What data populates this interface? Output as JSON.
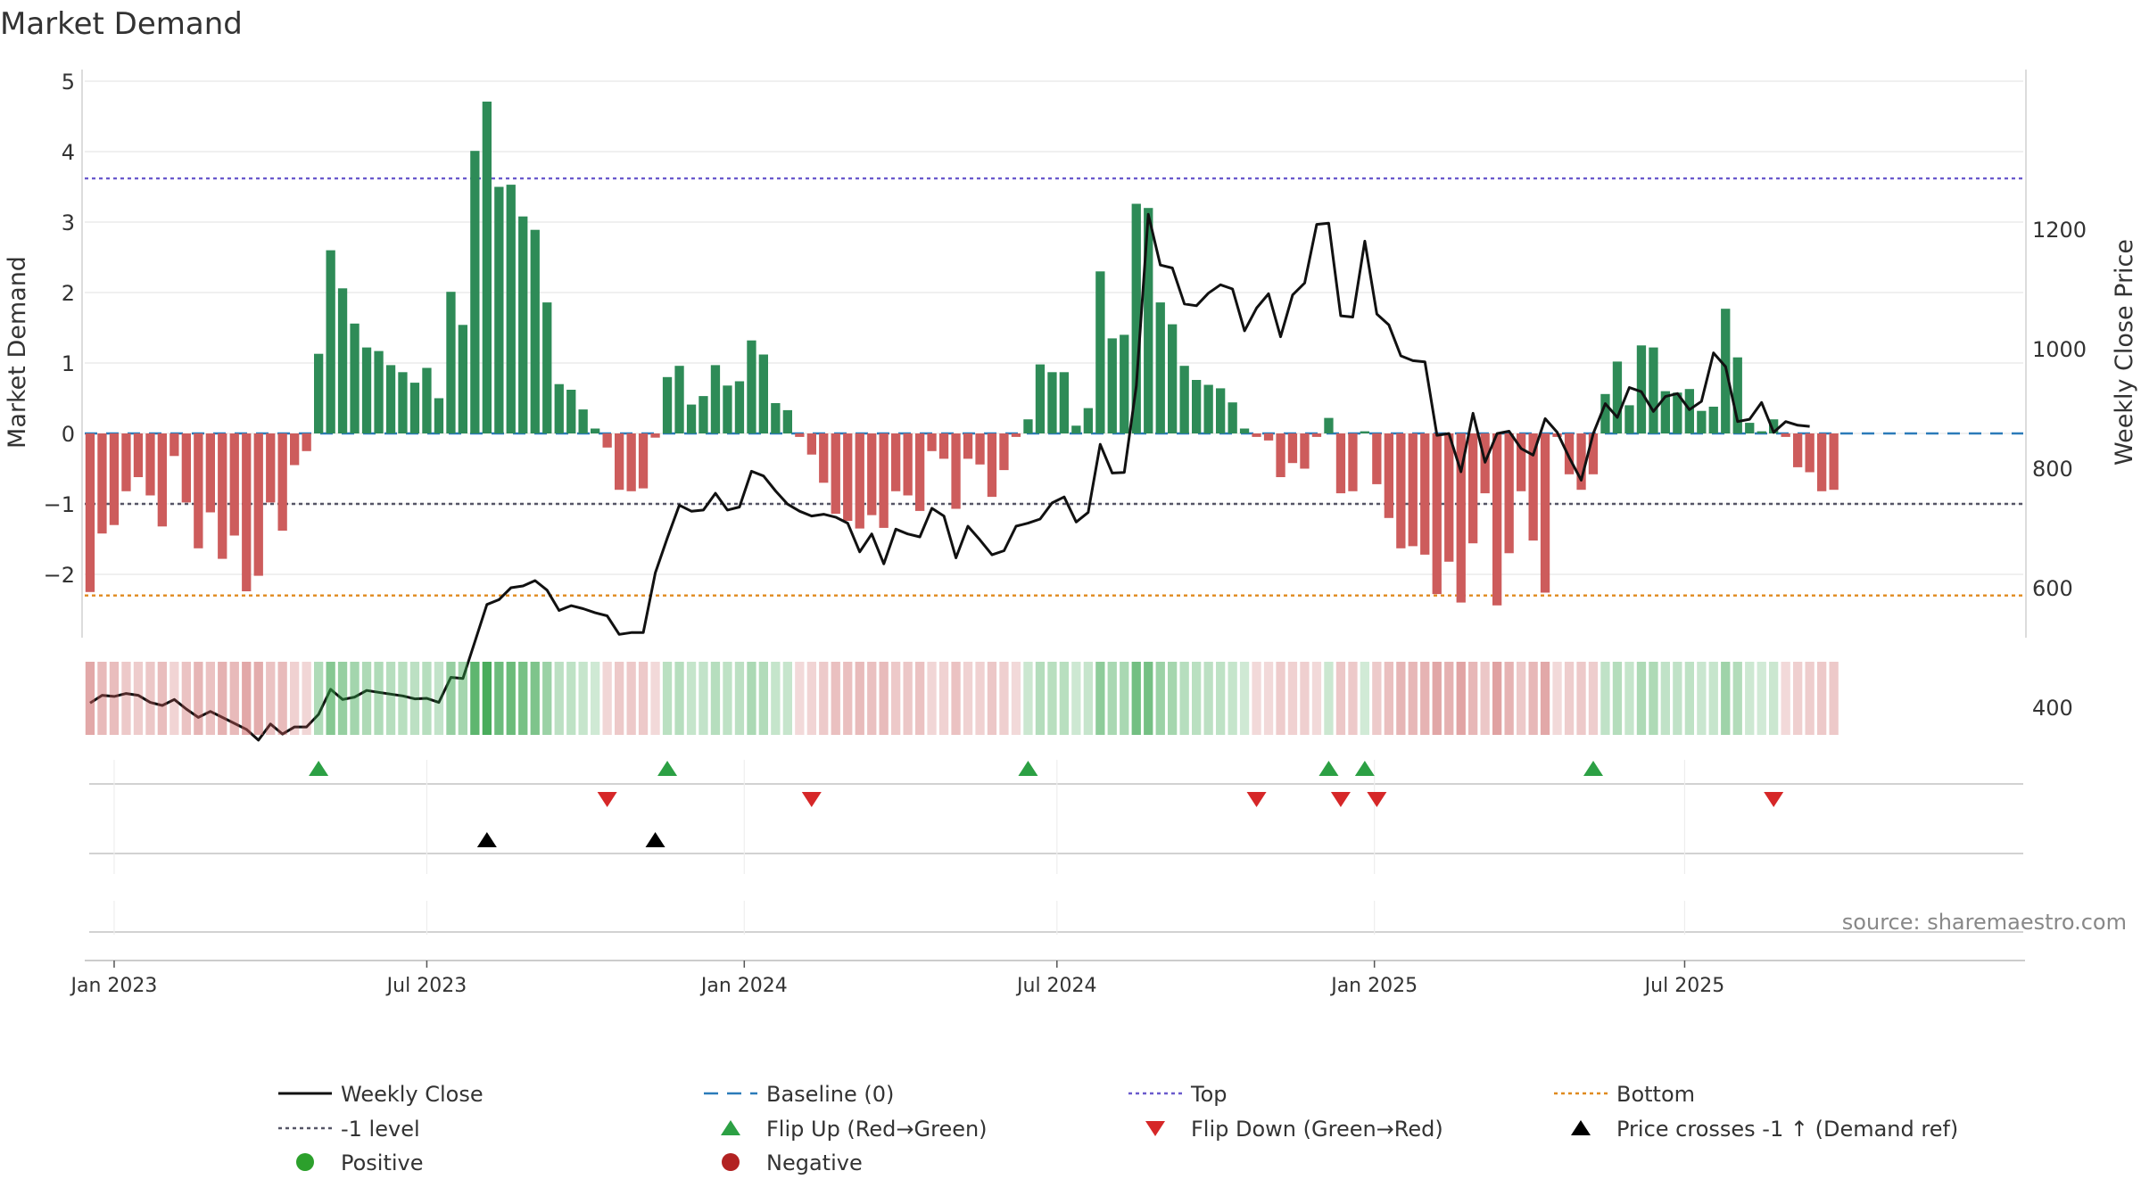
{
  "chart_data": {
    "type": "bar",
    "title": "Market Demand",
    "ylabel": "Market Demand",
    "y2label": "Weekly Close Price",
    "source": "source: sharemaestro.com",
    "ylim": [
      -2.85,
      5.1
    ],
    "y2lim": [
      320,
      1250
    ],
    "yticks": [
      {
        "v": 5,
        "label": "5"
      },
      {
        "v": 4,
        "label": "4"
      },
      {
        "v": 3,
        "label": "3"
      },
      {
        "v": 2,
        "label": "2"
      },
      {
        "v": 1,
        "label": "1"
      },
      {
        "v": 0,
        "label": "0"
      },
      {
        "v": -1,
        "label": "−1"
      },
      {
        "v": -2,
        "label": "−2"
      }
    ],
    "y2ticks": [
      {
        "v": 1200,
        "label": "1200"
      },
      {
        "v": 1000,
        "label": "1000"
      },
      {
        "v": 800,
        "label": "800"
      },
      {
        "v": 600,
        "label": "600"
      },
      {
        "v": 400,
        "label": "400"
      }
    ],
    "x_ticks": [
      {
        "week": 2,
        "label": "Jan 2023"
      },
      {
        "week": 28,
        "label": "Jul 2023"
      },
      {
        "week": 54.4,
        "label": "Jan 2024"
      },
      {
        "week": 80.4,
        "label": "Jul 2024"
      },
      {
        "week": 106.8,
        "label": "Jan 2025"
      },
      {
        "week": 132.6,
        "label": "Jul 2025"
      }
    ],
    "levels": {
      "top": 3.62,
      "minus_one": -1.0,
      "bottom": -2.3,
      "baseline": 0
    },
    "colors": {
      "positive": "#2e8b57",
      "negative": "#cd5c5c",
      "close": "#111111",
      "baseline": "#2b7bb9",
      "top": "#6a5acd",
      "minus_one": "#555566",
      "bottom": "#e08a1e",
      "flip_up": "#2ca044",
      "flip_down": "#d62728",
      "cross": "#000000",
      "legend_positive": "#2ca02c",
      "legend_negative": "#b22222"
    },
    "demand": [
      -2.25,
      -1.42,
      -1.3,
      -0.82,
      -0.62,
      -0.88,
      -1.32,
      -0.32,
      -0.98,
      -1.63,
      -1.12,
      -1.78,
      -1.45,
      -2.24,
      -2.02,
      -0.98,
      -1.38,
      -0.45,
      -0.25,
      1.13,
      2.6,
      2.06,
      1.56,
      1.22,
      1.17,
      0.97,
      0.87,
      0.72,
      0.93,
      0.5,
      2.01,
      1.54,
      4.01,
      4.71,
      3.5,
      3.53,
      3.08,
      2.89,
      1.86,
      0.7,
      0.62,
      0.34,
      0.07,
      -0.2,
      -0.8,
      -0.82,
      -0.78,
      -0.06,
      0.8,
      0.96,
      0.41,
      0.53,
      0.97,
      0.68,
      0.74,
      1.32,
      1.12,
      0.43,
      0.33,
      -0.05,
      -0.3,
      -0.7,
      -1.14,
      -1.24,
      -1.35,
      -1.16,
      -1.34,
      -0.82,
      -0.88,
      -1.1,
      -0.25,
      -0.36,
      -1.07,
      -0.36,
      -0.44,
      -0.9,
      -0.52,
      -0.05,
      0.2,
      0.98,
      0.87,
      0.87,
      0.11,
      0.36,
      2.3,
      1.35,
      1.4,
      3.26,
      3.2,
      1.86,
      1.55,
      0.96,
      0.76,
      0.69,
      0.64,
      0.44,
      0.07,
      -0.05,
      -0.1,
      -0.62,
      -0.42,
      -0.5,
      -0.05,
      0.22,
      -0.85,
      -0.82,
      0.03,
      -0.72,
      -1.2,
      -1.63,
      -1.6,
      -1.72,
      -2.28,
      -1.82,
      -2.4,
      -1.56,
      -0.85,
      -2.44,
      -1.7,
      -0.82,
      -1.52,
      -2.26,
      -0.05,
      -0.58,
      -0.8,
      -0.58,
      0.56,
      1.02,
      0.4,
      1.25,
      1.22,
      0.6,
      0.58,
      0.63,
      0.32,
      0.38,
      1.77,
      1.08,
      0.15,
      0.03,
      0.2,
      -0.05,
      -0.48,
      -0.55,
      -0.82,
      -0.8
    ],
    "close": [
      407,
      420,
      418,
      423,
      420,
      408,
      403,
      413,
      397,
      383,
      393,
      383,
      373,
      363,
      345,
      372,
      355,
      367,
      367,
      388,
      430,
      413,
      417,
      428,
      425,
      422,
      419,
      414,
      415,
      408,
      450,
      448,
      510,
      572,
      580,
      600,
      603,
      612,
      596,
      562,
      570,
      565,
      558,
      553,
      522,
      525,
      525,
      625,
      683,
      738,
      728,
      730,
      758,
      730,
      735,
      795,
      787,
      762,
      740,
      728,
      720,
      723,
      718,
      708,
      660,
      690,
      640,
      698,
      690,
      685,
      733,
      720,
      650,
      703,
      680,
      655,
      662,
      703,
      708,
      715,
      742,
      752,
      710,
      726,
      840,
      792,
      793,
      938,
      1225,
      1140,
      1135,
      1075,
      1072,
      1093,
      1107,
      1100,
      1030,
      1068,
      1092,
      1020,
      1090,
      1110,
      1208,
      1210,
      1055,
      1053,
      1180,
      1058,
      1040,
      988,
      980,
      978,
      855,
      858,
      794,
      892,
      810,
      858,
      862,
      833,
      822,
      883,
      860,
      818,
      780,
      858,
      908,
      885,
      935,
      928,
      895,
      920,
      925,
      898,
      912,
      993,
      970,
      878,
      882,
      910,
      860,
      878,
      872,
      870
    ],
    "flip_up_weeks": [
      19,
      48,
      78,
      103,
      106,
      125
    ],
    "flip_down_weeks": [
      43,
      60,
      97,
      104,
      107,
      140
    ],
    "cross_weeks": [
      33,
      47
    ],
    "legend": [
      {
        "label": "Weekly Close",
        "marker": "line"
      },
      {
        "label": "Baseline (0)",
        "marker": "dash-blue"
      },
      {
        "label": "Top",
        "marker": "dot-purple"
      },
      {
        "label": "Bottom",
        "marker": "dot-orange"
      },
      {
        "label": "-1 level",
        "marker": "dot-grey"
      },
      {
        "label": "Flip Up (Red→Green)",
        "marker": "tri-up-green"
      },
      {
        "label": "Flip Down (Green→Red)",
        "marker": "tri-down-red"
      },
      {
        "label": "Price crosses -1 ↑ (Demand ref)",
        "marker": "tri-up-black"
      },
      {
        "label": "Positive",
        "marker": "circle-green"
      },
      {
        "label": "Negative",
        "marker": "circle-red"
      }
    ]
  }
}
